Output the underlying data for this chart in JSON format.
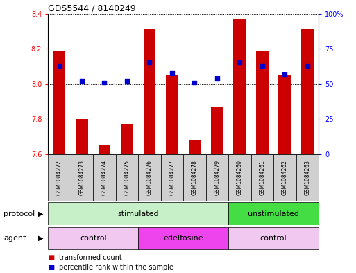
{
  "title": "GDS5544 / 8140249",
  "samples": [
    "GSM1084272",
    "GSM1084273",
    "GSM1084274",
    "GSM1084275",
    "GSM1084276",
    "GSM1084277",
    "GSM1084278",
    "GSM1084279",
    "GSM1084260",
    "GSM1084261",
    "GSM1084262",
    "GSM1084263"
  ],
  "bar_values": [
    8.19,
    7.8,
    7.65,
    7.77,
    8.31,
    8.05,
    7.68,
    7.87,
    8.37,
    8.19,
    8.05,
    8.31
  ],
  "dot_values": [
    63,
    52,
    51,
    52,
    65,
    58,
    51,
    54,
    65,
    63,
    57,
    63
  ],
  "ylim": [
    7.6,
    8.4
  ],
  "yticks": [
    7.6,
    7.8,
    8.0,
    8.2,
    8.4
  ],
  "y2lim": [
    0,
    100
  ],
  "y2ticks": [
    0,
    25,
    50,
    75,
    100
  ],
  "y2ticklabels": [
    "0",
    "25",
    "50",
    "75",
    "100%"
  ],
  "bar_color": "#cc0000",
  "dot_color": "#0000cc",
  "bar_bottom": 7.6,
  "protocol_groups": [
    {
      "label": "stimulated",
      "start": 0,
      "end": 8,
      "color": "#c8f0c8"
    },
    {
      "label": "unstimulated",
      "start": 8,
      "end": 12,
      "color": "#44dd44"
    }
  ],
  "agent_groups": [
    {
      "label": "control",
      "start": 0,
      "end": 4,
      "color": "#f0c8f0"
    },
    {
      "label": "edelfosine",
      "start": 4,
      "end": 8,
      "color": "#ee44ee"
    },
    {
      "label": "control",
      "start": 8,
      "end": 12,
      "color": "#f0c8f0"
    }
  ],
  "legend_bar_label": "transformed count",
  "legend_dot_label": "percentile rank within the sample",
  "protocol_label": "protocol",
  "agent_label": "agent",
  "bg_color": "#ffffff",
  "plot_bg_color": "#ffffff",
  "sample_box_color": "#d0d0d0",
  "title_fontsize": 9,
  "axis_fontsize": 7,
  "label_fontsize": 8
}
